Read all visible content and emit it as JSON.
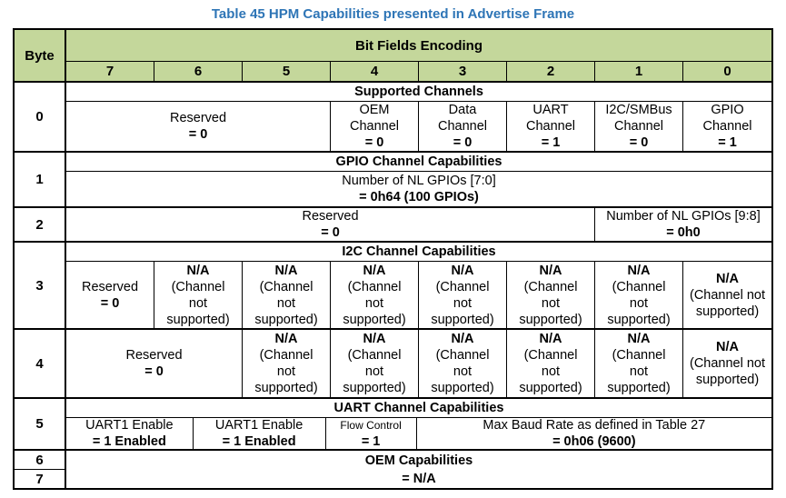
{
  "title": "Table 45 HPM Capabilities presented in Advertise Frame",
  "colors": {
    "header_bg": "#c4d79b",
    "title": "#2e75b6",
    "border": "#000000"
  },
  "header": {
    "byte": "Byte",
    "encoding": "Bit Fields Encoding",
    "bits": [
      "7",
      "6",
      "5",
      "4",
      "3",
      "2",
      "1",
      "0"
    ]
  },
  "groups": [
    {
      "byte": "0",
      "section": "Supported Channels",
      "cells": [
        {
          "lines": [
            "Reserved",
            "= 0"
          ]
        },
        {
          "lines": [
            "OEM",
            "Channel",
            "= 0"
          ]
        },
        {
          "lines": [
            "Data",
            "Channel",
            "= 0"
          ]
        },
        {
          "lines": [
            "UART",
            "Channel",
            "= 1"
          ]
        },
        {
          "lines": [
            "I2C/SMBus",
            "Channel",
            "= 0"
          ]
        },
        {
          "lines": [
            "GPIO",
            "Channel",
            "= 1"
          ]
        }
      ]
    },
    {
      "byte": "1",
      "section": "GPIO Channel Capabilities",
      "cells": [
        {
          "lines": [
            "Number of NL GPIOs [7:0]",
            "= 0h64 (100 GPIOs)"
          ]
        }
      ]
    },
    {
      "byte": "2",
      "cells": [
        {
          "lines": [
            "Reserved",
            "= 0"
          ]
        },
        {
          "lines": [
            "Number of NL GPIOs [9:8]",
            "= 0h0"
          ]
        }
      ]
    },
    {
      "byte": "3",
      "section": "I2C Channel Capabilities",
      "cells": [
        {
          "lines": [
            "Reserved",
            "= 0"
          ]
        },
        {
          "lines": [
            "N/A",
            "(Channel",
            "not",
            "supported)"
          ]
        },
        {
          "lines": [
            "N/A",
            "(Channel",
            "not",
            "supported)"
          ]
        },
        {
          "lines": [
            "N/A",
            "(Channel",
            "not",
            "supported)"
          ]
        },
        {
          "lines": [
            "N/A",
            "(Channel",
            "not",
            "supported)"
          ]
        },
        {
          "lines": [
            "N/A",
            "(Channel",
            "not",
            "supported)"
          ]
        },
        {
          "lines": [
            "N/A",
            "(Channel",
            "not",
            "supported)"
          ]
        },
        {
          "lines": [
            "N/A",
            "(Channel not",
            "supported)"
          ]
        }
      ]
    },
    {
      "byte": "4",
      "cells": [
        {
          "lines": [
            "Reserved",
            "= 0"
          ]
        },
        {
          "lines": [
            "N/A",
            "(Channel",
            "not",
            "supported)"
          ]
        },
        {
          "lines": [
            "N/A",
            "(Channel",
            "not",
            "supported)"
          ]
        },
        {
          "lines": [
            "N/A",
            "(Channel",
            "not",
            "supported)"
          ]
        },
        {
          "lines": [
            "N/A",
            "(Channel",
            "not",
            "supported)"
          ]
        },
        {
          "lines": [
            "N/A",
            "(Channel",
            "not",
            "supported)"
          ]
        },
        {
          "lines": [
            "N/A",
            "(Channel not",
            "supported)"
          ]
        }
      ]
    },
    {
      "byte": "5",
      "section": "UART Channel Capabilities",
      "cells": [
        {
          "lines": [
            "UART1 Enable",
            "= 1 Enabled"
          ]
        },
        {
          "lines": [
            "UART1 Enable",
            "= 1 Enabled"
          ]
        },
        {
          "lines": [
            "Flow Control",
            "= 1"
          ]
        },
        {
          "lines": [
            "Max Baud Rate as defined in Table 27",
            "= 0h06 (9600)"
          ]
        }
      ]
    },
    {
      "byte6": "6",
      "byte7": "7",
      "cells": [
        {
          "lines": [
            "OEM Capabilities",
            "= N/A"
          ]
        }
      ]
    }
  ]
}
